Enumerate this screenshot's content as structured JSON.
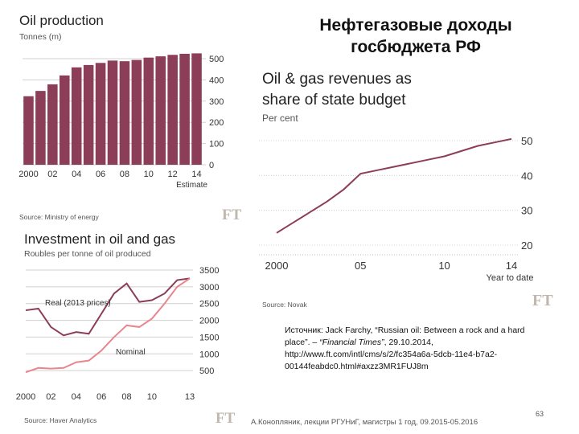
{
  "slide": {
    "title_line1": "Нефтегазовые доходы",
    "title_line2": "госбюджета РФ",
    "citation_prefix": "Источник: Jack Farchy, “Russian oil: Between a rock and a hard place”. – ",
    "citation_journal": "“Financial Times”",
    "citation_suffix": ", 29.10.2014, http://www.ft.com/intl/cms/s/2/fc354a6a-5dcb-11e4-b7a2-00144feabdc0.html#axzz3MR1FUJ8m",
    "footer": "А.Конопляник, лекции РГУНиГ, магистры 1 год, 09.2015-05.2016",
    "page_number": "63",
    "ft_logo": "FT"
  },
  "chart_data": [
    {
      "type": "bar",
      "title": "Oil production",
      "subtitle": "Tonnes (m)",
      "source": "Source: Ministry of energy",
      "x": [
        2000,
        2001,
        2002,
        2003,
        2004,
        2005,
        2006,
        2007,
        2008,
        2009,
        2010,
        2011,
        2012,
        2013,
        2014
      ],
      "values": [
        323,
        348,
        379,
        421,
        459,
        470,
        480,
        491,
        488,
        494,
        505,
        511,
        518,
        523,
        525
      ],
      "x_tick_labels": [
        "2000",
        "02",
        "04",
        "06",
        "08",
        "10",
        "12",
        "14"
      ],
      "x_tick_values": [
        2000,
        2002,
        2004,
        2006,
        2008,
        2010,
        2012,
        2014
      ],
      "x_annotation": "Estimate",
      "y_ticks": [
        0,
        100,
        200,
        300,
        400,
        500
      ],
      "ylim": [
        0,
        500
      ],
      "grid": true,
      "colors": {
        "bar": "#8c3d57",
        "grid": "#d0d0d0"
      }
    },
    {
      "type": "line",
      "title": "Investment in oil and gas",
      "subtitle": "Roubles per tonne of oil produced",
      "source": "Source: Haver Analytics",
      "series": [
        {
          "name": "Real (2013 prices)",
          "x": [
            2000,
            2001,
            2002,
            2003,
            2004,
            2005,
            2006,
            2007,
            2008,
            2009,
            2010,
            2011,
            2012,
            2013
          ],
          "values": [
            2300,
            2350,
            1800,
            1550,
            1650,
            1600,
            2200,
            2800,
            3100,
            2550,
            2600,
            2800,
            3200,
            3250
          ]
        },
        {
          "name": "Nominal",
          "x": [
            2000,
            2001,
            2002,
            2003,
            2004,
            2005,
            2006,
            2007,
            2008,
            2009,
            2010,
            2011,
            2012,
            2013
          ],
          "values": [
            450,
            580,
            560,
            580,
            750,
            800,
            1100,
            1500,
            1850,
            1800,
            2050,
            2500,
            3000,
            3250
          ]
        }
      ],
      "series_labels": [
        "Real (2013 prices)",
        "Nominal"
      ],
      "x_tick_labels": [
        "2000",
        "02",
        "04",
        "06",
        "08",
        "10",
        "13"
      ],
      "x_tick_values": [
        2000,
        2002,
        2004,
        2006,
        2008,
        2010,
        2013
      ],
      "y_ticks": [
        500,
        1000,
        1500,
        2000,
        2500,
        3000,
        3500
      ],
      "ylim": [
        0,
        3500
      ],
      "xlim": [
        2000,
        2013
      ],
      "grid": true,
      "colors": {
        "real": "#8c3d57",
        "nominal": "#e8868e",
        "grid": "#d0d0d0"
      }
    },
    {
      "type": "line",
      "title_line1": "Oil & gas revenues as",
      "title_line2": "share of state budget",
      "subtitle": "Per cent",
      "source": "Source: Novak",
      "series": [
        {
          "name": "",
          "x": [
            2000,
            2001,
            2002,
            2003,
            2004,
            2005,
            2006,
            2007,
            2008,
            2009,
            2010,
            2011,
            2012,
            2013,
            2014
          ],
          "values": [
            23.5,
            26.5,
            29.5,
            32.5,
            36,
            40.5,
            41.5,
            42.5,
            43.5,
            44.5,
            45.5,
            47,
            48.5,
            49.5,
            50.5
          ]
        }
      ],
      "x_tick_labels": [
        "2000",
        "05",
        "10",
        "14"
      ],
      "x_tick_values": [
        2000,
        2005,
        2010,
        2014
      ],
      "x_annotation": "Year to date",
      "y_ticks": [
        20,
        30,
        40,
        50
      ],
      "ylim": [
        20,
        50
      ],
      "xlim": [
        2000,
        2014
      ],
      "grid": true,
      "colors": {
        "line": "#8c3d57",
        "grid": "#d0d0d0"
      }
    }
  ]
}
